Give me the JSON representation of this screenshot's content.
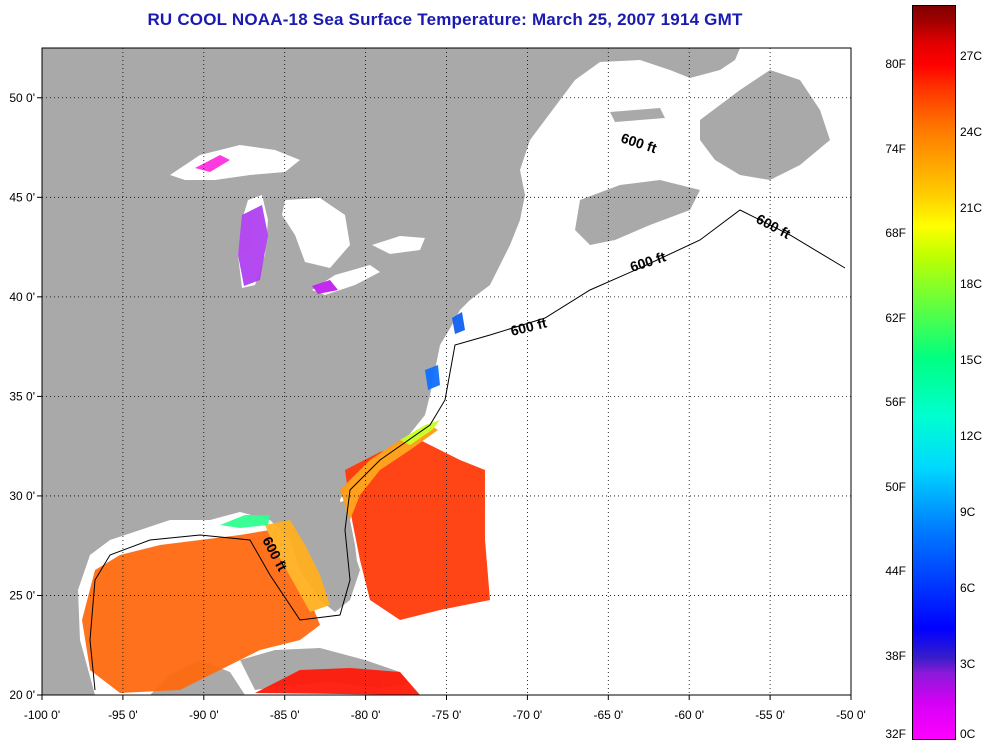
{
  "title": "RU COOL  NOAA-18  Sea Surface Temperature:  March 25, 2007 1914 GMT",
  "map": {
    "lon_range": [
      -100,
      -50
    ],
    "lat_range": [
      20,
      52.5
    ],
    "lon_ticks": [
      {
        "value": -100,
        "label": "-100 0'"
      },
      {
        "value": -95,
        "label": "-95 0'"
      },
      {
        "value": -90,
        "label": "-90 0'"
      },
      {
        "value": -85,
        "label": "-85 0'"
      },
      {
        "value": -80,
        "label": "-80 0'"
      },
      {
        "value": -75,
        "label": "-75 0'"
      },
      {
        "value": -70,
        "label": "-70 0'"
      },
      {
        "value": -65,
        "label": "-65 0'"
      },
      {
        "value": -60,
        "label": "-60 0'"
      },
      {
        "value": -55,
        "label": "-55 0'"
      },
      {
        "value": -50,
        "label": "-50 0'"
      }
    ],
    "lat_ticks": [
      {
        "value": 20,
        "label": "20 0'"
      },
      {
        "value": 25,
        "label": "25 0'"
      },
      {
        "value": 30,
        "label": "30 0'"
      },
      {
        "value": 35,
        "label": "35 0'"
      },
      {
        "value": 40,
        "label": "40 0'"
      },
      {
        "value": 45,
        "label": "45 0'"
      },
      {
        "value": 50,
        "label": "50 0'"
      }
    ],
    "grid": "dotted",
    "land_color": "#a9a9a9",
    "water_color": "#ffffff",
    "isobath_labels": [
      "600 ft",
      "600 ft",
      "600 ft",
      "600 ft",
      "600 ft"
    ]
  },
  "colorbar": {
    "fahrenheit": [
      {
        "value": 32,
        "label": "32F"
      },
      {
        "value": 38,
        "label": "38F"
      },
      {
        "value": 44,
        "label": "44F"
      },
      {
        "value": 50,
        "label": "50F"
      },
      {
        "value": 56,
        "label": "56F"
      },
      {
        "value": 62,
        "label": "62F"
      },
      {
        "value": 68,
        "label": "68F"
      },
      {
        "value": 74,
        "label": "74F"
      },
      {
        "value": 80,
        "label": "80F"
      }
    ],
    "celsius": [
      {
        "value": 0,
        "label": "0C"
      },
      {
        "value": 3,
        "label": "3C"
      },
      {
        "value": 6,
        "label": "6C"
      },
      {
        "value": 9,
        "label": "9C"
      },
      {
        "value": 12,
        "label": "12C"
      },
      {
        "value": 15,
        "label": "15C"
      },
      {
        "value": 18,
        "label": "18C"
      },
      {
        "value": 21,
        "label": "21C"
      },
      {
        "value": 24,
        "label": "24C"
      },
      {
        "value": 27,
        "label": "27C"
      }
    ],
    "min_c": 0,
    "max_c": 29
  }
}
